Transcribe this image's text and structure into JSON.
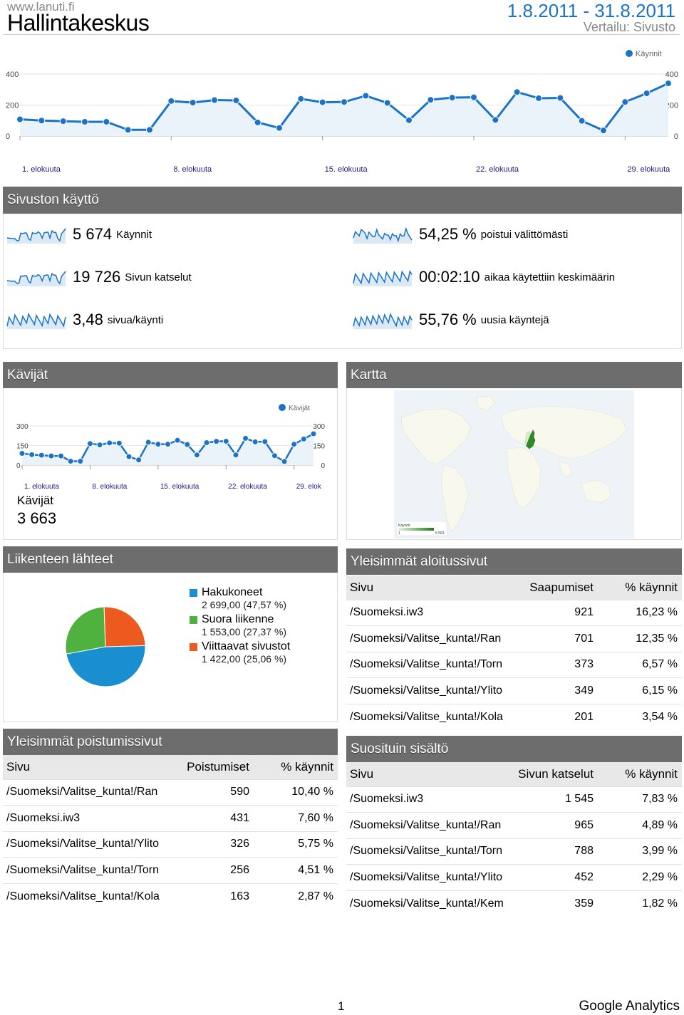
{
  "header": {
    "site": "www.lanuti.fi",
    "title": "Hallintakeskus",
    "date_range": "1.8.2011 - 31.8.2011",
    "comparison": "Vertailu: Sivusto"
  },
  "colors": {
    "line": "#1a73c6",
    "section_header": "#6d6d6d",
    "pie_search": "#1a8fd0",
    "pie_direct": "#4fb23f",
    "pie_referral": "#ec5a1f",
    "map_finland": "#2e8b24"
  },
  "chart_data": [
    {
      "type": "line",
      "legend": "Käynnit",
      "legend_position": "top-right",
      "x_tick_labels": [
        "1. elokuuta",
        "8. elokuuta",
        "15. elokuuta",
        "22. elokuuta",
        "29. elokuuta"
      ],
      "y_tick_labels_left": [
        "400",
        "200",
        "0"
      ],
      "y_tick_labels_right": [
        "400",
        "200",
        "0"
      ],
      "ylim": [
        0,
        400
      ],
      "grid": true,
      "days": [
        1,
        2,
        3,
        4,
        5,
        6,
        7,
        8,
        9,
        10,
        11,
        12,
        13,
        14,
        15,
        16,
        17,
        18,
        19,
        20,
        21,
        22,
        23,
        24,
        25,
        26,
        27,
        28,
        29,
        30,
        31
      ],
      "series": [
        {
          "name": "Käynnit",
          "values": [
            108,
            100,
            96,
            92,
            92,
            40,
            40,
            226,
            216,
            232,
            230,
            88,
            52,
            240,
            218,
            220,
            260,
            214,
            102,
            234,
            248,
            250,
            104,
            284,
            244,
            246,
            98,
            36,
            220,
            276,
            340
          ]
        }
      ]
    },
    {
      "type": "line",
      "legend": "Kävijät",
      "legend_position": "top-right",
      "x_tick_labels": [
        "1. elokuuta",
        "8. elokuuta",
        "15. elokuuta",
        "22. elokuuta",
        "29. elok"
      ],
      "y_tick_labels_left": [
        "300",
        "150",
        "0"
      ],
      "y_tick_labels_right": [
        "300",
        "150",
        "0"
      ],
      "ylim": [
        0,
        300
      ],
      "grid": true,
      "days": [
        1,
        2,
        3,
        4,
        5,
        6,
        7,
        8,
        9,
        10,
        11,
        12,
        13,
        14,
        15,
        16,
        17,
        18,
        19,
        20,
        21,
        22,
        23,
        24,
        25,
        26,
        27,
        28,
        29,
        30,
        31
      ],
      "series": [
        {
          "name": "Kävijät",
          "values": [
            90,
            80,
            76,
            70,
            70,
            30,
            30,
            165,
            155,
            170,
            168,
            65,
            40,
            175,
            160,
            160,
            190,
            158,
            78,
            172,
            182,
            183,
            78,
            205,
            178,
            180,
            72,
            28,
            160,
            200,
            240
          ]
        }
      ]
    },
    {
      "type": "pie",
      "slices": [
        {
          "name": "Hakukoneet",
          "value": 2699.0,
          "percent": 47.57
        },
        {
          "name": "Suora liikenne",
          "value": 1553.0,
          "percent": 27.37
        },
        {
          "name": "Viittaavat sivustot",
          "value": 1422.0,
          "percent": 25.06
        }
      ]
    }
  ],
  "usage": {
    "title": "Sivuston käyttö",
    "metrics": [
      {
        "value": "5 674",
        "label": "Käynnit"
      },
      {
        "value": "54,25 %",
        "label": "poistui välittömästi"
      },
      {
        "value": "19 726",
        "label": "Sivun katselut"
      },
      {
        "value": "00:02:10",
        "label": "aikaa käytettiin keskimäärin"
      },
      {
        "value": "3,48",
        "label": "sivua/käynti"
      },
      {
        "value": "55,76 %",
        "label": "uusia käyntejä"
      }
    ]
  },
  "visitors": {
    "title": "Kävijät",
    "label": "Kävijät",
    "value": "3 663"
  },
  "map": {
    "title": "Kartta",
    "legend_title": "Käynnit",
    "legend_min": "1",
    "legend_max": "5 563"
  },
  "traffic": {
    "title": "Liikenteen lähteet",
    "legend": [
      {
        "name": "Hakukoneet",
        "detail": "2 699,00 (47,57 %)"
      },
      {
        "name": "Suora liikenne",
        "detail": "1 553,00 (27,37 %)"
      },
      {
        "name": "Viittaavat sivustot",
        "detail": "1 422,00 (25,06 %)"
      }
    ]
  },
  "landing": {
    "title": "Yleisimmät aloitussivut",
    "headers": [
      "Sivu",
      "Saapumiset",
      "% käynnit"
    ],
    "rows": [
      [
        "/Suomeksi.iw3",
        "921",
        "16,23 %"
      ],
      [
        "/Suomeksi/Valitse_kunta!/Ran",
        "701",
        "12,35 %"
      ],
      [
        "/Suomeksi/Valitse_kunta!/Torn",
        "373",
        "6,57 %"
      ],
      [
        "/Suomeksi/Valitse_kunta!/Ylito",
        "349",
        "6,15 %"
      ],
      [
        "/Suomeksi/Valitse_kunta!/Kola",
        "201",
        "3,54 %"
      ]
    ]
  },
  "exits": {
    "title": "Yleisimmät poistumissivut",
    "headers": [
      "Sivu",
      "Poistumiset",
      "% käynnit"
    ],
    "rows": [
      [
        "/Suomeksi/Valitse_kunta!/Ran",
        "590",
        "10,40 %"
      ],
      [
        "/Suomeksi.iw3",
        "431",
        "7,60 %"
      ],
      [
        "/Suomeksi/Valitse_kunta!/Ylito",
        "326",
        "5,75 %"
      ],
      [
        "/Suomeksi/Valitse_kunta!/Torn",
        "256",
        "4,51 %"
      ],
      [
        "/Suomeksi/Valitse_kunta!/Kola",
        "163",
        "2,87 %"
      ]
    ]
  },
  "content": {
    "title": "Suosituin sisältö",
    "headers": [
      "Sivu",
      "Sivun katselut",
      "% käynnit"
    ],
    "rows": [
      [
        "/Suomeksi.iw3",
        "1 545",
        "7,83 %"
      ],
      [
        "/Suomeksi/Valitse_kunta!/Ran",
        "965",
        "4,89 %"
      ],
      [
        "/Suomeksi/Valitse_kunta!/Torn",
        "788",
        "3,99 %"
      ],
      [
        "/Suomeksi/Valitse_kunta!/Ylito",
        "452",
        "2,29 %"
      ],
      [
        "/Suomeksi/Valitse_kunta!/Kem",
        "359",
        "1,82 %"
      ]
    ]
  },
  "footer": {
    "page": "1",
    "brand": "Google Analytics"
  }
}
